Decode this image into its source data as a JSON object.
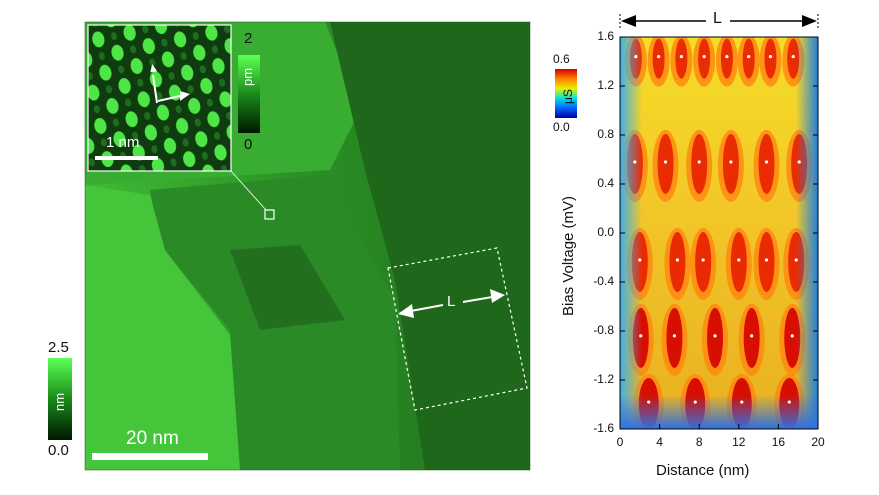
{
  "stm_image": {
    "scale_bar_label": "20 nm",
    "height_colorbar": {
      "max": "2.5",
      "min": "0.0",
      "unit": "nm"
    },
    "line_marker_label": "L"
  },
  "inset": {
    "scale_bar_label": "1 nm",
    "colorbar": {
      "max": "2",
      "min": "0",
      "unit": "pm"
    }
  },
  "spectroscopy_map": {
    "top_marker_label": "L",
    "colorbar": {
      "max": "0.6",
      "min": "0.0",
      "unit": "μS"
    },
    "xlabel": "Distance (nm)",
    "ylabel": "Bias Voltage (mV)",
    "xticks": [
      "0",
      "4",
      "8",
      "12",
      "16",
      "20"
    ],
    "yticks": [
      "1.6",
      "1.2",
      "0.8",
      "0.4",
      "0.0",
      "-0.4",
      "-0.8",
      "-1.2",
      "-1.6"
    ]
  },
  "chart_data": {
    "type": "heatmap",
    "xlabel": "Distance (nm)",
    "ylabel": "Bias Voltage (mV)",
    "xlim": [
      0,
      20
    ],
    "ylim": [
      -1.6,
      1.6
    ],
    "colorbar_range": [
      0.0,
      0.6
    ],
    "colorbar_unit": "μS",
    "marked_points": [
      {
        "bias_mV": 1.44,
        "distance_nm": [
          1.6,
          3.9,
          6.2,
          8.5,
          10.8,
          13.0,
          15.2,
          17.5
        ]
      },
      {
        "bias_mV": 0.58,
        "distance_nm": [
          1.5,
          4.6,
          8.0,
          11.2,
          14.8,
          18.1
        ]
      },
      {
        "bias_mV": -0.22,
        "distance_nm": [
          2.0,
          5.8,
          8.4,
          12.0,
          14.8,
          17.8
        ]
      },
      {
        "bias_mV": -0.84,
        "distance_nm": [
          2.1,
          5.5,
          9.6,
          13.3,
          17.4
        ]
      },
      {
        "bias_mV": -1.38,
        "distance_nm": [
          2.9,
          7.6,
          12.3,
          17.1
        ]
      }
    ]
  },
  "colors": {
    "stm_green": "#2f9e2a",
    "background": "#ffffff"
  }
}
